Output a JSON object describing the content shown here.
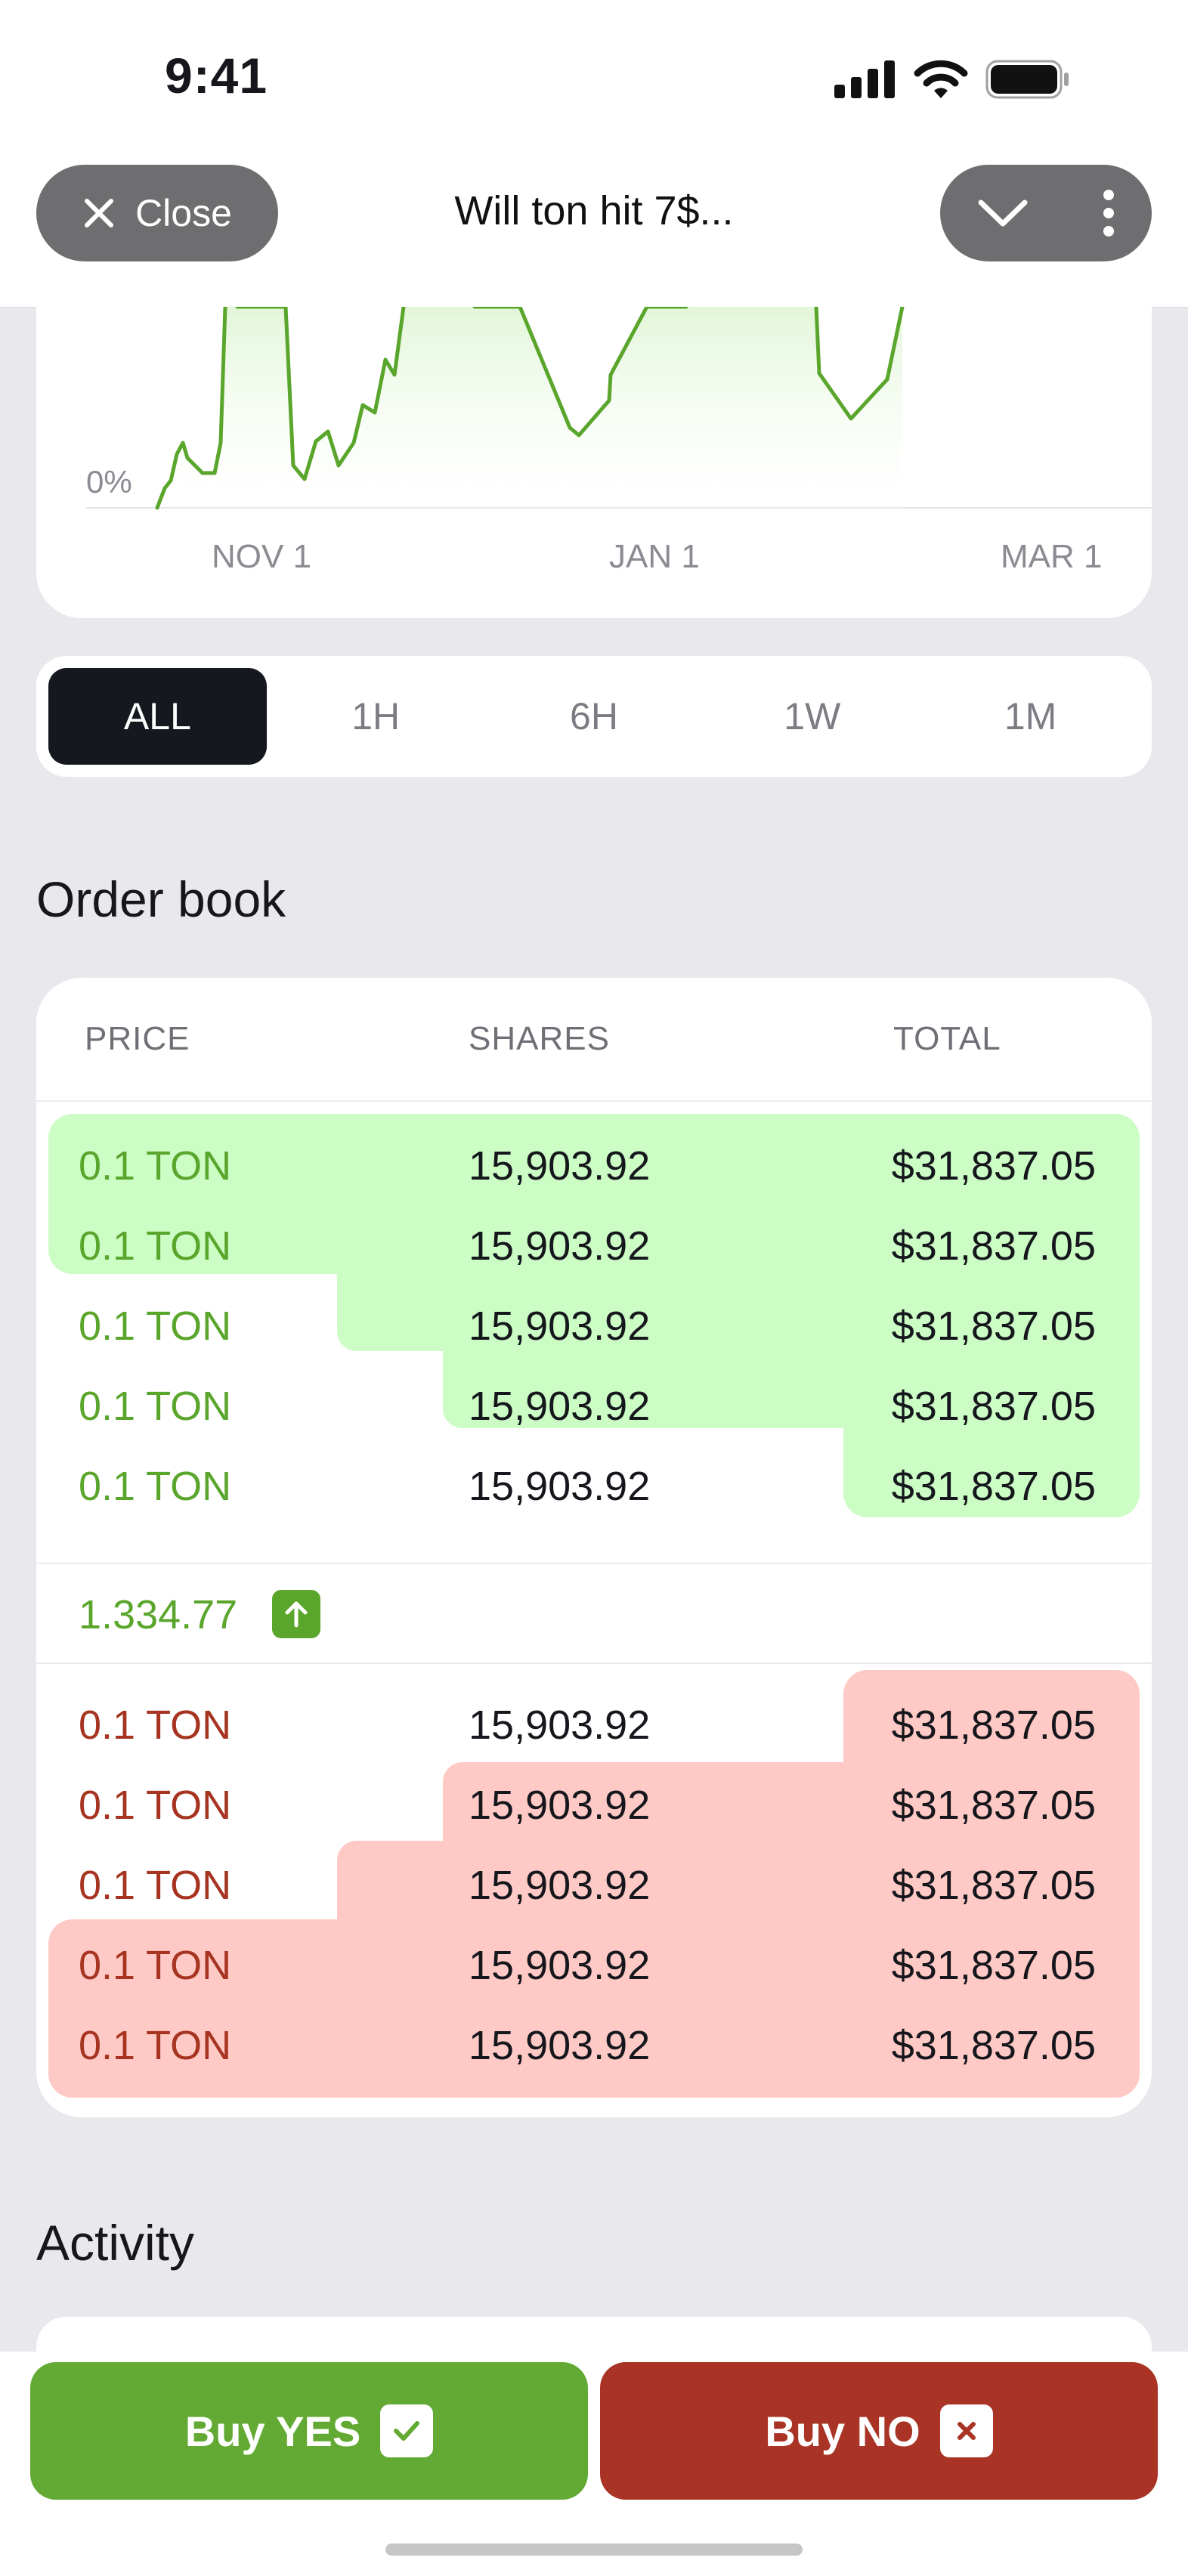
{
  "status_bar": {
    "time": "9:41"
  },
  "nav": {
    "close_label": "Close",
    "title": "Will ton hit 7$..."
  },
  "chart": {
    "y_label": "0%",
    "x_labels": [
      "NOV 1",
      "JAN 1",
      "MAR 1"
    ],
    "line_color": "#5aa62c"
  },
  "timeframes": [
    "ALL",
    "1H",
    "6H",
    "1W",
    "1M"
  ],
  "active_timeframe": "ALL",
  "order_book": {
    "title": "Order book",
    "headers": {
      "price": "PRICE",
      "shares": "SHARES",
      "total": "TOTAL"
    },
    "asks": [
      {
        "price": "0.1 TON",
        "shares": "15,903.92",
        "total": "$31,837.05"
      },
      {
        "price": "0.1 TON",
        "shares": "15,903.92",
        "total": "$31,837.05"
      },
      {
        "price": "0.1 TON",
        "shares": "15,903.92",
        "total": "$31,837.05"
      },
      {
        "price": "0.1 TON",
        "shares": "15,903.92",
        "total": "$31,837.05"
      },
      {
        "price": "0.1 TON",
        "shares": "15,903.92",
        "total": "$31,837.05"
      }
    ],
    "last_price": "1.334.77",
    "bids": [
      {
        "price": "0.1 TON",
        "shares": "15,903.92",
        "total": "$31,837.05"
      },
      {
        "price": "0.1 TON",
        "shares": "15,903.92",
        "total": "$31,837.05"
      },
      {
        "price": "0.1 TON",
        "shares": "15,903.92",
        "total": "$31,837.05"
      },
      {
        "price": "0.1 TON",
        "shares": "15,903.92",
        "total": "$31,837.05"
      },
      {
        "price": "0.1 TON",
        "shares": "15,903.92",
        "total": "$31,837.05"
      }
    ],
    "colors": {
      "yes": "#5aa62c",
      "yes_bg": "#ccfdc5",
      "no": "#a63420",
      "no_bg": "#ffc9c5"
    }
  },
  "activity": {
    "title": "Activity"
  },
  "actions": {
    "buy_yes": "Buy YES",
    "buy_no": "Buy NO"
  }
}
